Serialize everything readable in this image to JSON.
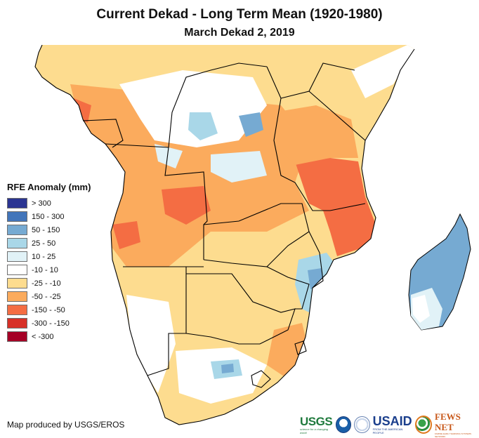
{
  "title": "Current Dekad - Long Term Mean (1920-1980)",
  "subtitle": "March Dekad 2, 2019",
  "legend": {
    "title": "RFE Anomaly (mm)",
    "items": [
      {
        "label": "> 300",
        "color": "#2b3592"
      },
      {
        "label": "150 - 300",
        "color": "#4275ba"
      },
      {
        "label": "50 - 150",
        "color": "#76aad2"
      },
      {
        "label": "25 - 50",
        "color": "#a9d7e8"
      },
      {
        "label": "10 - 25",
        "color": "#e1f2f7"
      },
      {
        "label": "-10 - 10",
        "color": "#ffffff"
      },
      {
        "label": "-25 - -10",
        "color": "#fddc8f"
      },
      {
        "label": "-50 - -25",
        "color": "#fbab5d"
      },
      {
        "label": "-150 - -50",
        "color": "#f46d43"
      },
      {
        "label": "-300 - -150",
        "color": "#d73027"
      },
      {
        "label": "< -300",
        "color": "#a50026"
      }
    ]
  },
  "credit": "Map produced by USGS/EROS",
  "logos": {
    "usgs": "USGS",
    "usgs_tagline": "science for a changing world",
    "noaa": "NOAA",
    "usaid": "USAID",
    "usaid_tagline": "FROM THE AMERICAN PEOPLE",
    "fews": "FEWS NET",
    "fews_tagline": "FAMINE EARLY WARNING SYSTEMS NETWORK"
  },
  "region": "Southern and Central Africa with Madagascar",
  "colors": {
    "border": "#000000",
    "background": "#ffffff"
  }
}
